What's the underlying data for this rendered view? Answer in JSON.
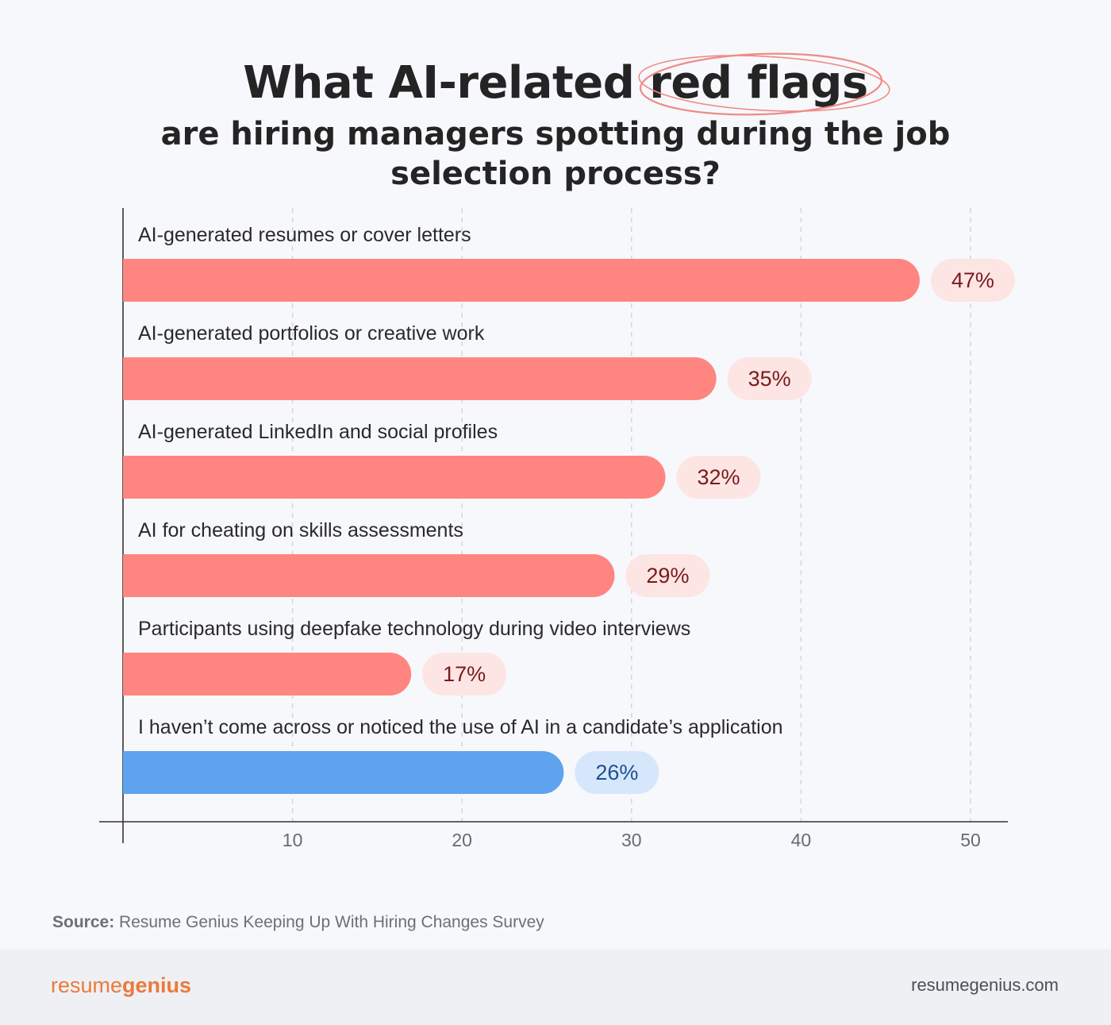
{
  "title": {
    "prefix": "What AI-related ",
    "highlight": "red flags",
    "subtitle": "are hiring managers spotting during the job selection process?"
  },
  "chart_data": {
    "type": "bar",
    "orientation": "horizontal",
    "categories": [
      "AI-generated resumes or cover letters",
      "AI-generated portfolios or creative work",
      "AI-generated LinkedIn and social profiles",
      "AI for cheating on skills assessments",
      "Participants using deepfake technology during video interviews",
      "I haven’t come across or noticed the use of AI in a candidate’s application"
    ],
    "values": [
      47,
      35,
      32,
      29,
      17,
      26
    ],
    "value_labels": [
      "47%",
      "35%",
      "32%",
      "29%",
      "17%",
      "26%"
    ],
    "bar_colors": [
      "#ff8580",
      "#ff8580",
      "#ff8580",
      "#ff8580",
      "#ff8580",
      "#5ea3ee"
    ],
    "label_bg_colors": [
      "#fde5e4",
      "#fde5e4",
      "#fde5e4",
      "#fde5e4",
      "#fde5e4",
      "#d7e7fb"
    ],
    "label_text_colors": [
      "#7a1a1a",
      "#7a1a1a",
      "#7a1a1a",
      "#7a1a1a",
      "#7a1a1a",
      "#1f4f8f"
    ],
    "xlim": [
      0,
      50
    ],
    "xticks": [
      10,
      20,
      30,
      40,
      50
    ],
    "grid": true
  },
  "source": {
    "label": "Source:",
    "text": " Resume Genius Keeping Up With Hiring Changes Survey"
  },
  "footer": {
    "brand_light": "resume",
    "brand_bold": "genius",
    "site": "resumegenius.com"
  },
  "colors": {
    "highlight_ellipse": "#f08a86",
    "axis": "#333333",
    "grid": "#d4d6db",
    "tick_text": "#666a72"
  }
}
